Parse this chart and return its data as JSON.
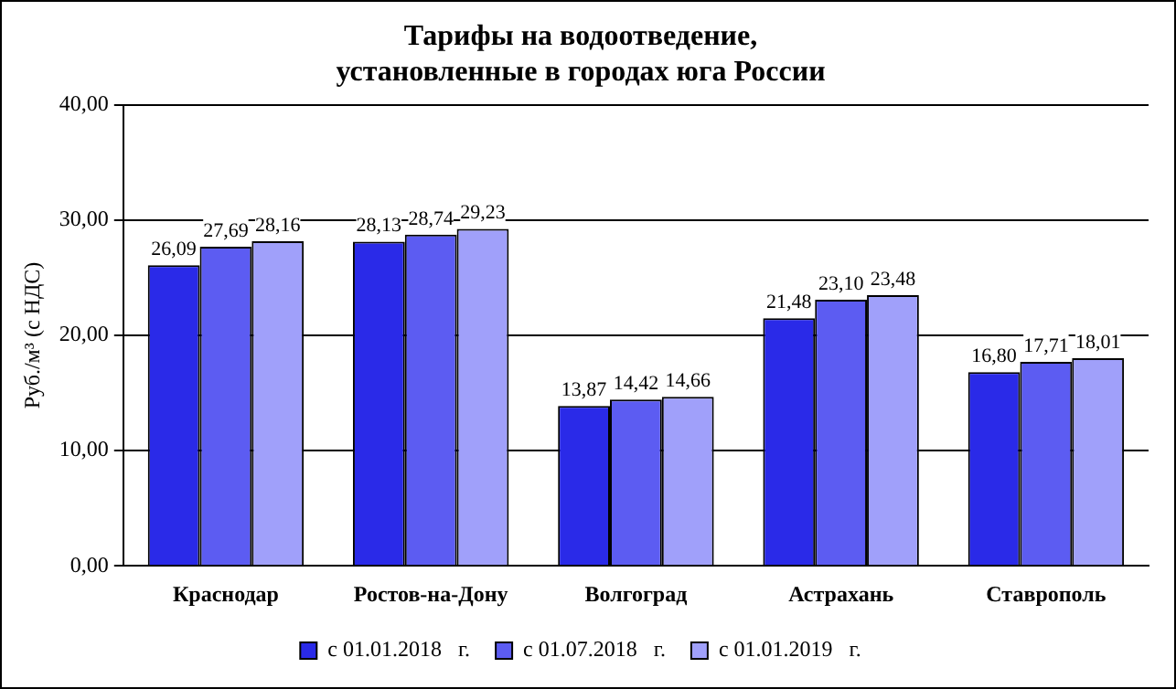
{
  "chart_data": {
    "type": "bar",
    "title": "Тарифы на водоотведение,\nустановленные в городах юга России",
    "ylabel": "Руб./м³ (с НДС)",
    "categories": [
      "Краснодар",
      "Ростов-на-Дону",
      "Волгоград",
      "Астрахань",
      "Ставрополь"
    ],
    "series": [
      {
        "name": "с 01.01.2018   г.",
        "color": "#2a2ae8",
        "values": [
          26.09,
          28.13,
          13.87,
          21.48,
          16.8
        ],
        "value_labels": [
          "26,09",
          "28,13",
          "13,87",
          "21,48",
          "16,80"
        ]
      },
      {
        "name": "с 01.07.2018   г.",
        "color": "#5c5cf2",
        "values": [
          27.69,
          28.74,
          14.42,
          23.1,
          17.71
        ],
        "value_labels": [
          "27,69",
          "28,74",
          "14,42",
          "23,10",
          "17,71"
        ]
      },
      {
        "name": "с 01.01.2019   г.",
        "color": "#a0a0fa",
        "values": [
          28.16,
          29.23,
          14.66,
          23.48,
          18.01
        ],
        "value_labels": [
          "28,16",
          "29,23",
          "14,66",
          "23,48",
          "18,01"
        ]
      }
    ],
    "ylim": [
      0,
      40
    ],
    "yticks": [
      {
        "value": 0,
        "label": "0,00"
      },
      {
        "value": 10,
        "label": "10,00"
      },
      {
        "value": 20,
        "label": "20,00"
      },
      {
        "value": 30,
        "label": "30,00"
      },
      {
        "value": 40,
        "label": "40,00"
      }
    ],
    "grid": "y",
    "legend": "bottom"
  }
}
